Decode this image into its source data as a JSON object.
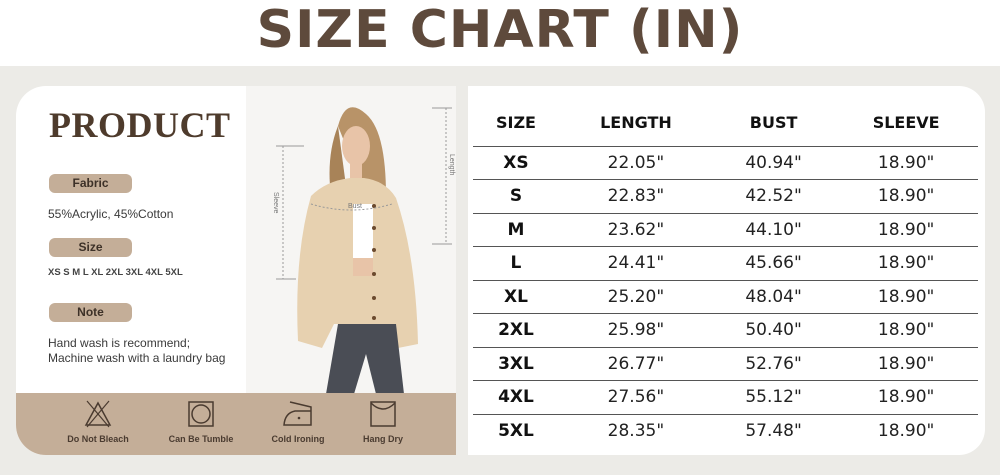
{
  "title": "SIZE CHART (IN)",
  "product": {
    "heading": "PRODUCT",
    "fabric_label": "Fabric",
    "fabric_value": "55%Acrylic, 45%Cotton",
    "size_label": "Size",
    "size_value": "XS S M L XL 2XL 3XL 4XL 5XL",
    "note_label": "Note",
    "note_lines": [
      "Hand wash is recommend;",
      "Machine wash with a laundry bag"
    ],
    "measure_labels": {
      "bust": "Bust",
      "length": "Length",
      "sleeve": "Sleeve"
    },
    "care": [
      {
        "icon": "do-not-bleach-icon",
        "label": "Do Not Bleach"
      },
      {
        "icon": "tumble-dry-icon",
        "label": "Can Be Tumble"
      },
      {
        "icon": "iron-icon",
        "label": "Cold Ironing"
      },
      {
        "icon": "hang-dry-icon",
        "label": "Hang Dry"
      }
    ],
    "colors": {
      "brand": "#5e4a3c",
      "band": "#c4ae98"
    }
  },
  "table": {
    "headers": [
      "SIZE",
      "LENGTH",
      "BUST",
      "SLEEVE"
    ],
    "rows": [
      [
        "XS",
        "22.05\"",
        "40.94\"",
        "18.90\""
      ],
      [
        "S",
        "22.83\"",
        "42.52\"",
        "18.90\""
      ],
      [
        "M",
        "23.62\"",
        "44.10\"",
        "18.90\""
      ],
      [
        "L",
        "24.41\"",
        "45.66\"",
        "18.90\""
      ],
      [
        "XL",
        "25.20\"",
        "48.04\"",
        "18.90\""
      ],
      [
        "2XL",
        "25.98\"",
        "50.40\"",
        "18.90\""
      ],
      [
        "3XL",
        "26.77\"",
        "52.76\"",
        "18.90\""
      ],
      [
        "4XL",
        "27.56\"",
        "55.12\"",
        "18.90\""
      ],
      [
        "5XL",
        "28.35\"",
        "57.48\"",
        "18.90\""
      ]
    ]
  }
}
